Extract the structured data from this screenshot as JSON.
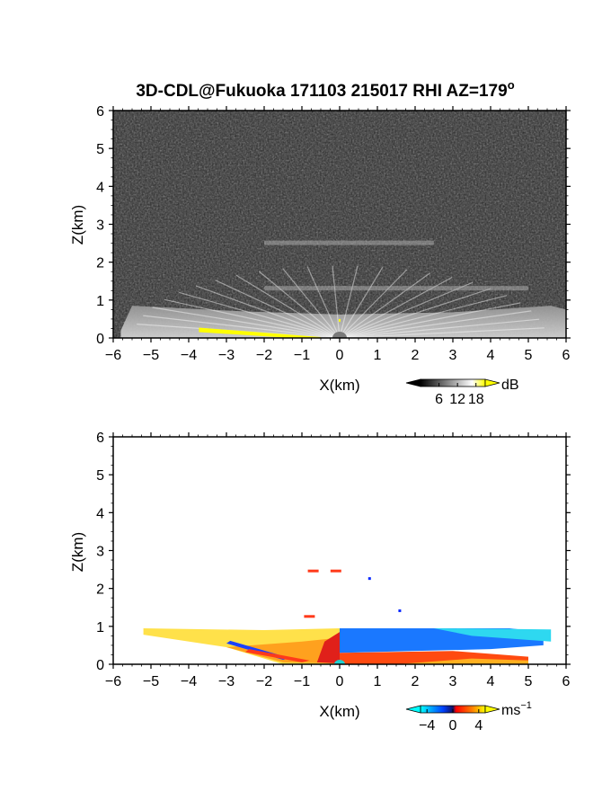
{
  "chart_data": [
    {
      "type": "heatmap",
      "title": "3D-CDL@Fukuoka 171103 215017 RHI AZ=179",
      "title_superscript": "o",
      "xlabel": "X(km)",
      "ylabel": "Z(km)",
      "xlim": [
        -6,
        6
      ],
      "ylim": [
        0,
        6
      ],
      "xticks": [
        "−6",
        "−5",
        "−4",
        "−3",
        "−2",
        "−1",
        "0",
        "1",
        "2",
        "3",
        "4",
        "5",
        "6"
      ],
      "yticks": [
        "0",
        "1",
        "2",
        "3",
        "4",
        "5",
        "6"
      ],
      "quantity": "reflectivity",
      "colorbar": {
        "unit": "dB",
        "ticks": [
          "6",
          "12",
          "18"
        ],
        "range": [
          0,
          21
        ],
        "colors": [
          "#000000",
          "#ffffff",
          "#ffff00"
        ]
      },
      "features": [
        {
          "kind": "boundary-layer",
          "x": [
            -5.8,
            6.0
          ],
          "top_km": 0.85,
          "value_db": 14
        },
        {
          "kind": "thin-layer",
          "x": [
            -2.0,
            5.0
          ],
          "z_km": 1.3,
          "value_db": 9
        },
        {
          "kind": "thin-layer",
          "x": [
            -2.0,
            2.5
          ],
          "z_km": 2.5,
          "value_db": 7
        },
        {
          "kind": "saturated-ground",
          "x": [
            -3.3,
            -0.5
          ],
          "z_km": [
            0.5,
            0.0
          ],
          "value_db": 21
        }
      ]
    },
    {
      "type": "heatmap",
      "xlabel": "X(km)",
      "ylabel": "Z(km)",
      "xlim": [
        -6,
        6
      ],
      "ylim": [
        0,
        6
      ],
      "xticks": [
        "−6",
        "−5",
        "−4",
        "−3",
        "−2",
        "−1",
        "0",
        "1",
        "2",
        "3",
        "4",
        "5",
        "6"
      ],
      "yticks": [
        "0",
        "1",
        "2",
        "3",
        "4",
        "5",
        "6"
      ],
      "quantity": "doppler-velocity",
      "colorbar": {
        "unit": "ms",
        "unit_superscript": "−1",
        "ticks": [
          "−4",
          "0",
          "4"
        ],
        "range": [
          -5,
          5
        ],
        "colors": [
          "#00ffff",
          "#0040ff",
          "#ff0000",
          "#ffff00"
        ]
      },
      "features": [
        {
          "kind": "layer",
          "x": [
            -5.2,
            0.0
          ],
          "z_km": [
            0.0,
            0.95
          ],
          "velocity_ms": 4
        },
        {
          "kind": "layer",
          "x": [
            0.0,
            5.4
          ],
          "z_km": [
            0.3,
            0.95
          ],
          "velocity_ms": -2
        },
        {
          "kind": "near-ground",
          "x": [
            0.0,
            5.0
          ],
          "z_km": [
            0.0,
            0.3
          ],
          "velocity_ms": 2
        },
        {
          "kind": "speckle",
          "x": -0.7,
          "z_km": 2.45,
          "velocity_ms": 1
        },
        {
          "kind": "speckle",
          "x": -0.1,
          "z_km": 2.45,
          "velocity_ms": 1
        },
        {
          "kind": "speckle",
          "x": 0.9,
          "z_km": 2.25,
          "velocity_ms": -4
        },
        {
          "kind": "speckle",
          "x": -0.8,
          "z_km": 1.25,
          "velocity_ms": 1
        },
        {
          "kind": "speckle",
          "x": 1.7,
          "z_km": 1.4,
          "velocity_ms": -4
        }
      ]
    }
  ]
}
